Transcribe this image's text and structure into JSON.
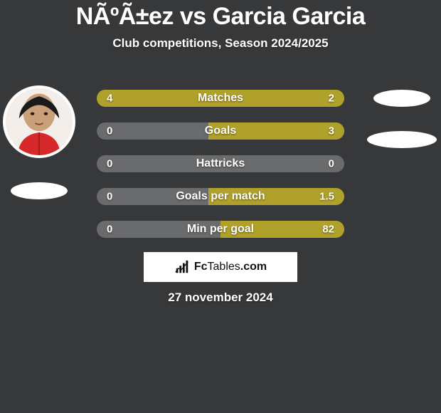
{
  "background_color": "#37383a",
  "accent_color": "#b0a12a",
  "secondary_color": "#6a6b6c",
  "text_color": "#ffffff",
  "title": {
    "text": "NÃºÃ±ez vs Garcia Garcia",
    "fontsize": 34
  },
  "subtitle": {
    "text": "Club competitions, Season 2024/2025",
    "fontsize": 17
  },
  "left_player": {
    "avatar": {
      "bg": "#f3eee9",
      "has_photo": true
    },
    "team_ellipse_color": "#ffffff"
  },
  "right_player": {
    "team_ellipses": [
      {
        "color": "#ffffff",
        "stretch": false
      },
      {
        "color": "#ffffff",
        "stretch": true
      }
    ]
  },
  "bars": {
    "track_color": "#6a6b6c",
    "fill_color": "#b0a12a",
    "label_fontsize": 16,
    "value_fontsize": 15,
    "rows": [
      {
        "label": "Matches",
        "left": "4",
        "right": "2",
        "left_pct": 66,
        "right_pct": 34
      },
      {
        "label": "Goals",
        "left": "0",
        "right": "3",
        "left_pct": 0,
        "right_pct": 55
      },
      {
        "label": "Hattricks",
        "left": "0",
        "right": "0",
        "left_pct": 0,
        "right_pct": 0
      },
      {
        "label": "Goals per match",
        "left": "0",
        "right": "1.5",
        "left_pct": 0,
        "right_pct": 55
      },
      {
        "label": "Min per goal",
        "left": "0",
        "right": "82",
        "left_pct": 0,
        "right_pct": 50
      }
    ]
  },
  "brand": {
    "prefix": "Fc",
    "suffix": "Tables",
    "tld": ".com"
  },
  "footer_date": {
    "text": "27 november 2024",
    "fontsize": 17
  }
}
